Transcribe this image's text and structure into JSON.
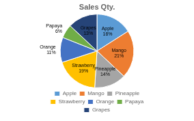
{
  "chart_data": {
    "type": "pie",
    "title": "Sales Qty.",
    "categories": [
      "Apple",
      "Mango",
      "Pineapple",
      "Strawberry",
      "Orange",
      "Papaya",
      "Grapes"
    ],
    "values": [
      16,
      21,
      14,
      19,
      11,
      6,
      13
    ],
    "value_labels": [
      "16%",
      "21%",
      "14%",
      "19%",
      "11%",
      "6%",
      "13%"
    ],
    "colors": [
      "#5B9BD5",
      "#ED7D31",
      "#A5A5A5",
      "#FFC000",
      "#4472C4",
      "#70AD47",
      "#264478"
    ],
    "data_labels": true,
    "legend": "bottom"
  }
}
